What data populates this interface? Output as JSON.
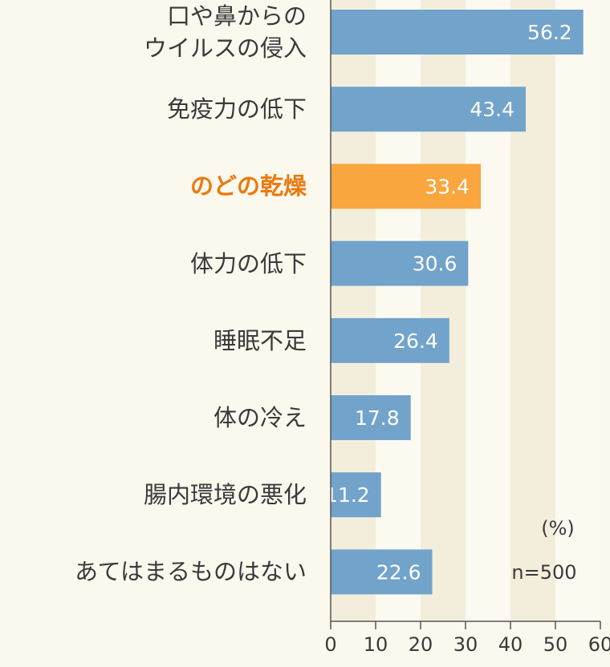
{
  "chart_data": {
    "type": "hbar",
    "categories": [
      "口や鼻からの\nウイルスの侵入",
      "免疫力の低下",
      "のどの乾燥",
      "体力の低下",
      "睡眠不足",
      "体の冷え",
      "腸内環境の悪化",
      "あてはまるものはない"
    ],
    "values": [
      56.2,
      43.4,
      33.4,
      30.6,
      26.4,
      17.8,
      11.2,
      22.6
    ],
    "colors": [
      "#72a3cb",
      "#72a3cb",
      "#f9a63f",
      "#72a3cb",
      "#72a3cb",
      "#72a3cb",
      "#72a3cb",
      "#72a3cb"
    ],
    "label_colors": [
      "#3a3a3a",
      "#3a3a3a",
      "#ea7a10",
      "#3a3a3a",
      "#3a3a3a",
      "#3a3a3a",
      "#3a3a3a",
      "#3a3a3a"
    ],
    "xlim": [
      0,
      60
    ],
    "xticks": [
      0,
      10,
      20,
      30,
      40,
      50,
      60
    ],
    "annotations": [
      "(%)",
      "n=500"
    ]
  }
}
